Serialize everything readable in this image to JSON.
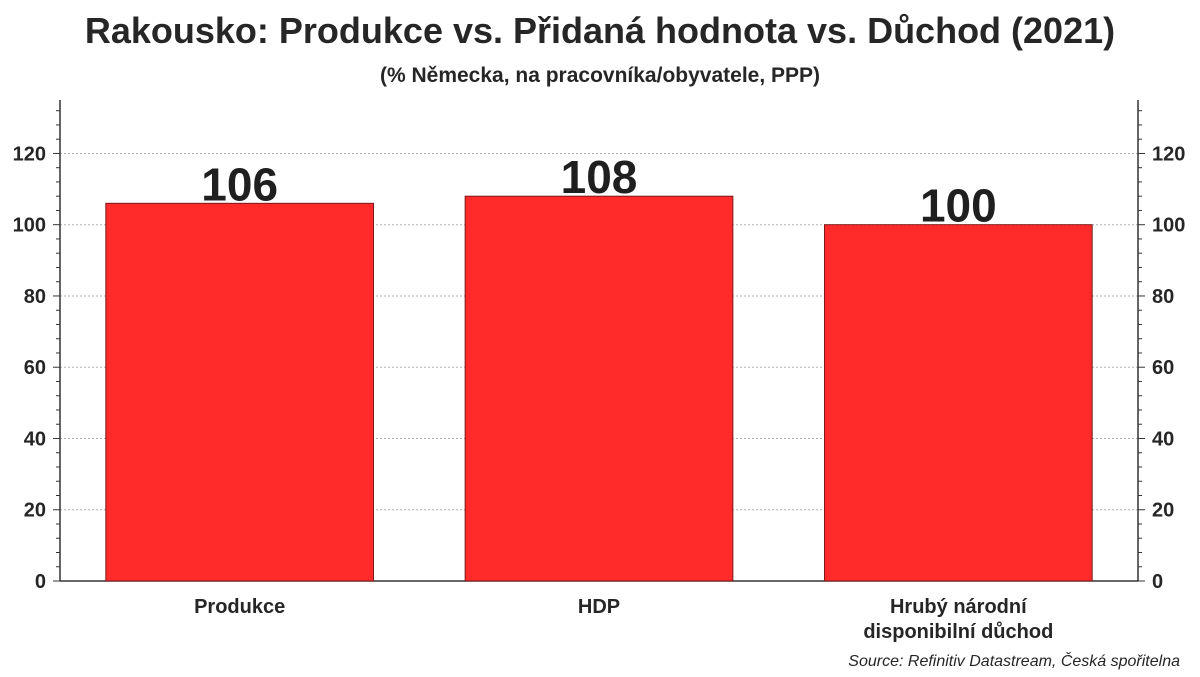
{
  "header": {
    "title": "Rakousko: Produkce vs. Přidaná hodnota vs. Důchod (2021)",
    "subtitle": "(% Německa, na pracovníka/obyvatele, PPP)"
  },
  "footer": {
    "source": "Source: Refinitiv Datastream, Česká spořitelna"
  },
  "colors": {
    "bar": "#ff2a2a",
    "bar_border": "#7a1a1a",
    "grid": "#b0b0b0",
    "axis": "#333333"
  },
  "chart_data": {
    "type": "bar",
    "title": "Rakousko: Produkce vs. Přidaná hodnota vs. Důchod (2021)",
    "subtitle": "(% Německa, na pracovníka/obyvatele, PPP)",
    "categories": [
      [
        "Produkce"
      ],
      [
        "HDP"
      ],
      [
        "Hrubý národní",
        "disponibilní důchod"
      ]
    ],
    "values": [
      106,
      108,
      100
    ],
    "data_labels": [
      "106",
      "108",
      "100"
    ],
    "ylim": [
      0,
      135
    ],
    "yticks": [
      0,
      20,
      40,
      60,
      80,
      100,
      120
    ],
    "ytick_labels": [
      "0",
      "20",
      "40",
      "60",
      "80",
      "100",
      "120"
    ],
    "y_axis_sides": [
      "left",
      "right"
    ],
    "grid": true,
    "legend": "none"
  }
}
